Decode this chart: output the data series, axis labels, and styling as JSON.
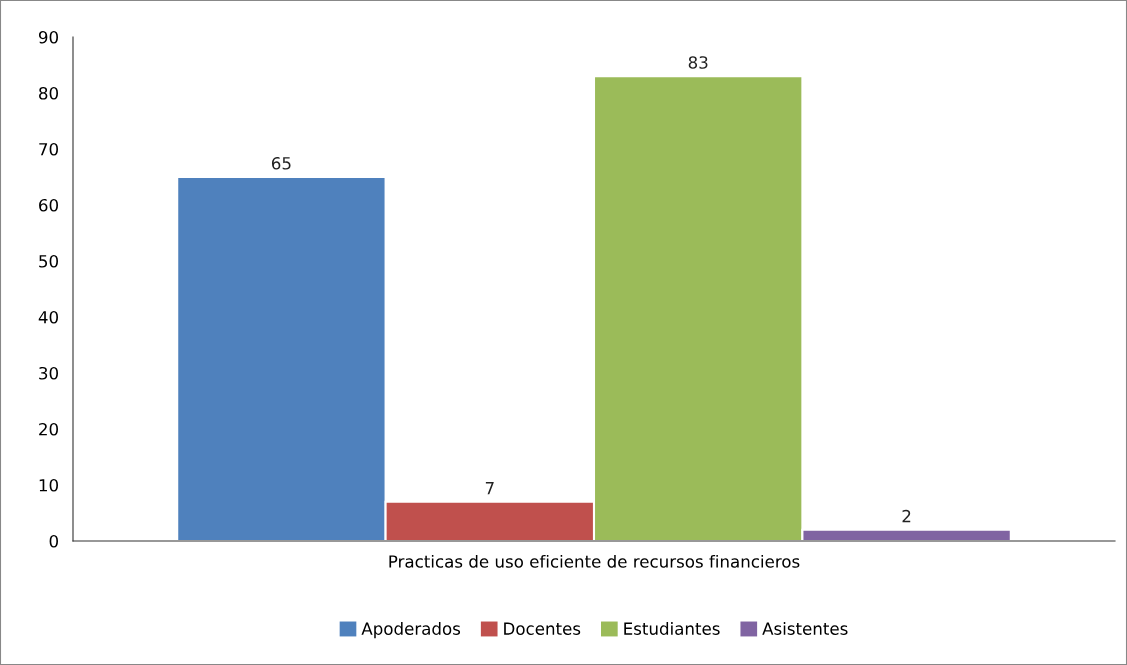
{
  "chart_data": {
    "type": "bar",
    "categories": [
      "Practicas de uso eficiente de recursos financieros"
    ],
    "series": [
      {
        "name": "Apoderados",
        "color": "#4f81bd",
        "values": [
          65
        ]
      },
      {
        "name": "Docentes",
        "color": "#c0504d",
        "values": [
          7
        ]
      },
      {
        "name": "Estudiantes",
        "color": "#9bbb59",
        "values": [
          83
        ]
      },
      {
        "name": "Asistentes",
        "color": "#8064a2",
        "values": [
          2
        ]
      }
    ],
    "ylim": [
      0,
      90
    ],
    "yticks": [
      0,
      10,
      20,
      30,
      40,
      50,
      60,
      70,
      80,
      90
    ],
    "data_labels": true,
    "legend": "bottom",
    "grid": false
  }
}
